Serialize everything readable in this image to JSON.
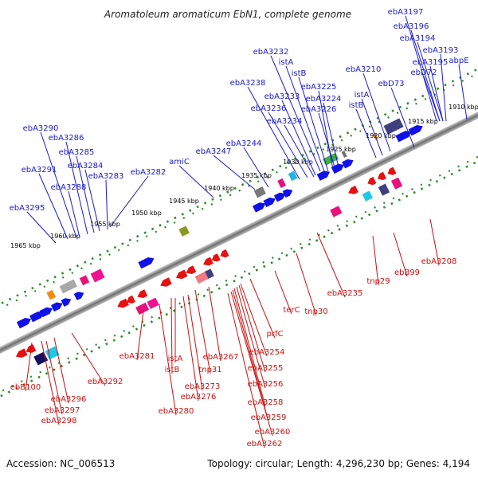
{
  "title": "Aromatoleum aromaticum EbN1, complete genome",
  "footer": {
    "accession": "Accession: NC_006513",
    "summary": "Topology: circular; Length: 4,296,230 bp; Genes: 4,194"
  },
  "colors": {
    "forward_strand": "#1010e8",
    "reverse_strand": "#e81010",
    "label_forward": "#1a1ad0",
    "label_reverse": "#cc1010",
    "backbone": "#7a7a7a",
    "tick_marks": "#2a8a2a"
  },
  "scale_ticks": [
    "1910 kbp",
    "1915 kbp",
    "1920 kbp",
    "1925 kbp",
    "1930 kbp",
    "1935 kbp",
    "1940 kbp",
    "1945 kbp",
    "1950 kbp",
    "1955 kbp",
    "1960 kbp",
    "1965 kbp"
  ],
  "forward_labels": [
    "ebA3197",
    "ebA3196",
    "ebA3194",
    "ebA3193",
    "ebA3195",
    "ebD72",
    "abpE",
    "ebA3210",
    "ebD73",
    "istA",
    "istB",
    "ebA3232",
    "istA",
    "istB",
    "ebA3225",
    "ebA3224",
    "ebA3226",
    "ebA3238",
    "ebA3233",
    "ebA3236",
    "ebA3234",
    "ebA3244",
    "ebA3247",
    "amiC",
    "ebA3282",
    "ebA3290",
    "ebA3286",
    "ebA3285",
    "ebA3284",
    "ebA3283",
    "ebA3291",
    "ebA3288",
    "ebA3295"
  ],
  "reverse_labels": [
    "ebA3208",
    "ebB99",
    "tnp29",
    "ebA3235",
    "tnp30",
    "terC",
    "prfC",
    "ebA3254",
    "ebA3255",
    "ebA3256",
    "ebA3258",
    "ebA3259",
    "ebA3260",
    "ebA3262",
    "ebA3267",
    "tnp31",
    "istB",
    "istA",
    "ebA3273",
    "ebA3276",
    "ebA3280",
    "ebA3281",
    "ebA3292",
    "ebA3296",
    "ebA3297",
    "ebA3298",
    "ebB100"
  ]
}
